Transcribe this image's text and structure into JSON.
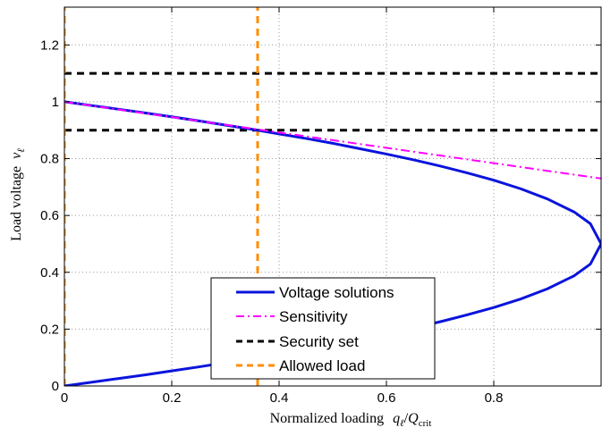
{
  "chart_data": {
    "type": "line",
    "xlabel": "Normalized loading",
    "xlabel_math": [
      "q",
      "ℓ",
      "/",
      "Q",
      "crit"
    ],
    "ylabel": "Load voltage",
    "ylabel_math": [
      "ν",
      "ℓ"
    ],
    "xlim": [
      0,
      1
    ],
    "ylim": [
      0,
      1.333
    ],
    "xticks": [
      0,
      0.2,
      0.4,
      0.6,
      0.8
    ],
    "xtick_labels": [
      "0",
      "0.2",
      "0.4",
      "0.6",
      "0.8"
    ],
    "yticks": [
      0,
      0.2,
      0.4,
      0.6,
      0.8,
      1,
      1.2
    ],
    "ytick_labels": [
      "0",
      "0.2",
      "0.4",
      "0.6",
      "0.8",
      "1",
      "1.2"
    ],
    "grid": true,
    "legend_position": "bottom-center",
    "series": [
      {
        "name": "Voltage solutions",
        "style": "solid",
        "color": "#0a14dc",
        "note": "upper and lower voltage branches v = (1 ± sqrt(1 - q))/2",
        "x": [
          0,
          0.05,
          0.1,
          0.15,
          0.2,
          0.25,
          0.3,
          0.35,
          0.4,
          0.45,
          0.5,
          0.55,
          0.6,
          0.65,
          0.7,
          0.75,
          0.8,
          0.85,
          0.9,
          0.95,
          0.98,
          1.0,
          0.98,
          0.95,
          0.9,
          0.85,
          0.8,
          0.75,
          0.7,
          0.65,
          0.6,
          0.55,
          0.5,
          0.45,
          0.4,
          0.35,
          0.3,
          0.25,
          0.2,
          0.15,
          0.1,
          0.05,
          0
        ],
        "y": [
          1.0,
          0.987,
          0.974,
          0.961,
          0.947,
          0.933,
          0.918,
          0.903,
          0.887,
          0.871,
          0.854,
          0.835,
          0.816,
          0.796,
          0.774,
          0.75,
          0.724,
          0.694,
          0.658,
          0.612,
          0.571,
          0.5,
          0.429,
          0.388,
          0.342,
          0.306,
          0.276,
          0.25,
          0.226,
          0.204,
          0.184,
          0.165,
          0.146,
          0.129,
          0.113,
          0.097,
          0.082,
          0.067,
          0.053,
          0.039,
          0.026,
          0.013,
          0.0
        ]
      },
      {
        "name": "Sensitivity",
        "style": "dashdot",
        "color": "#ff00ff",
        "x": [
          0,
          0.1,
          0.2,
          0.3,
          0.4,
          0.5,
          0.6,
          0.7,
          0.8,
          0.9,
          1.0
        ],
        "y": [
          1.0,
          0.973,
          0.946,
          0.919,
          0.892,
          0.865,
          0.838,
          0.811,
          0.784,
          0.757,
          0.73
        ]
      },
      {
        "name": "Security set",
        "style": "dashed",
        "color": "#000000",
        "lines": [
          {
            "x": [
              0,
              1
            ],
            "y": [
              1.1,
              1.1
            ]
          },
          {
            "x": [
              0,
              1
            ],
            "y": [
              0.9,
              0.9
            ]
          }
        ]
      },
      {
        "name": "Allowed load",
        "style": "dashed",
        "color": "#ff8c00",
        "lines": [
          {
            "x": [
              0,
              0
            ],
            "y": [
              0,
              1.333
            ]
          },
          {
            "x": [
              0.36,
              0.36
            ],
            "y": [
              0,
              1.333
            ]
          }
        ]
      }
    ]
  }
}
